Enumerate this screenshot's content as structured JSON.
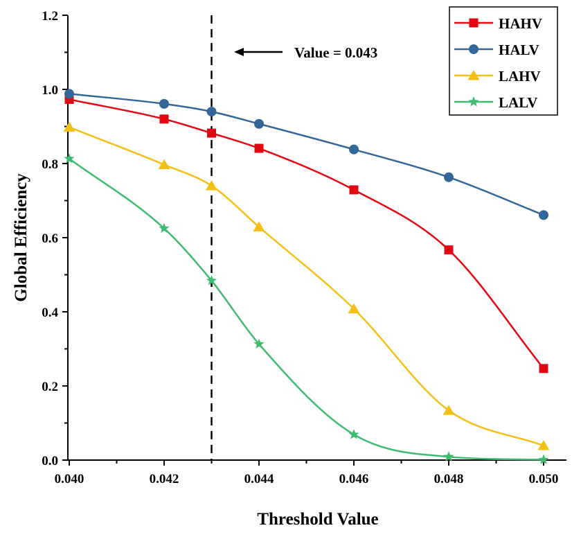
{
  "chart_data": {
    "type": "line",
    "xlabel": "Threshold Value",
    "ylabel": "Global Efficiency",
    "xlim": [
      0.04,
      0.05
    ],
    "ylim": [
      0.0,
      1.2
    ],
    "xticks": [
      0.04,
      0.042,
      0.044,
      0.046,
      0.048,
      0.05
    ],
    "xtick_labels": [
      "0.040",
      "0.042",
      "0.044",
      "0.046",
      "0.048",
      "0.050"
    ],
    "yticks": [
      0.0,
      0.2,
      0.4,
      0.6,
      0.8,
      1.0,
      1.2
    ],
    "ytick_labels": [
      "0.0",
      "0.2",
      "0.4",
      "0.6",
      "0.8",
      "1.0",
      "1.2"
    ],
    "grid": false,
    "legend_position": "top-right",
    "x": [
      0.04,
      0.042,
      0.043,
      0.044,
      0.046,
      0.048,
      0.05
    ],
    "series": [
      {
        "name": "HAHV",
        "color": "#e30613",
        "marker": "square",
        "values": [
          0.973,
          0.92,
          0.882,
          0.841,
          0.729,
          0.567,
          0.247
        ]
      },
      {
        "name": "HALV",
        "color": "#336699",
        "marker": "circle",
        "values": [
          0.988,
          0.961,
          0.94,
          0.907,
          0.838,
          0.763,
          0.661
        ]
      },
      {
        "name": "LAHV",
        "color": "#f5c016",
        "marker": "triangle",
        "values": [
          0.898,
          0.797,
          0.74,
          0.629,
          0.408,
          0.134,
          0.039
        ]
      },
      {
        "name": "LALV",
        "color": "#3dbb6e",
        "marker": "star",
        "values": [
          0.813,
          0.625,
          0.484,
          0.313,
          0.069,
          0.009,
          0.001
        ]
      }
    ],
    "annotations": [
      {
        "text": "Value = 0.043",
        "x": 0.043,
        "style": "dashed-vertical-line-with-arrow"
      }
    ]
  }
}
